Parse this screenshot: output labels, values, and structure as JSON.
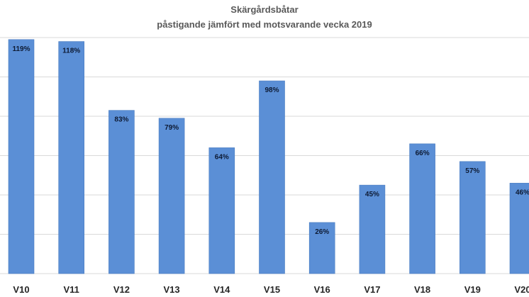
{
  "chart_data": {
    "type": "bar",
    "title": "Skärgårdsbåtar",
    "subtitle": "påstigande jämfört med motsvarande vecka 2019",
    "xlabel": "",
    "ylabel": "",
    "ylim": [
      0,
      120
    ],
    "grid": true,
    "gridlines": [
      20,
      40,
      60,
      80,
      100,
      120
    ],
    "categories": [
      "V10",
      "V11",
      "V12",
      "V13",
      "V14",
      "V15",
      "V16",
      "V17",
      "V18",
      "V19",
      "V20"
    ],
    "values": [
      119,
      118,
      83,
      79,
      64,
      98,
      26,
      45,
      66,
      57,
      46
    ],
    "data_labels": [
      "119%",
      "118%",
      "83%",
      "79%",
      "64%",
      "98%",
      "26%",
      "45%",
      "66%",
      "57%",
      "46%"
    ],
    "bar_color": "#5b8fd6"
  }
}
